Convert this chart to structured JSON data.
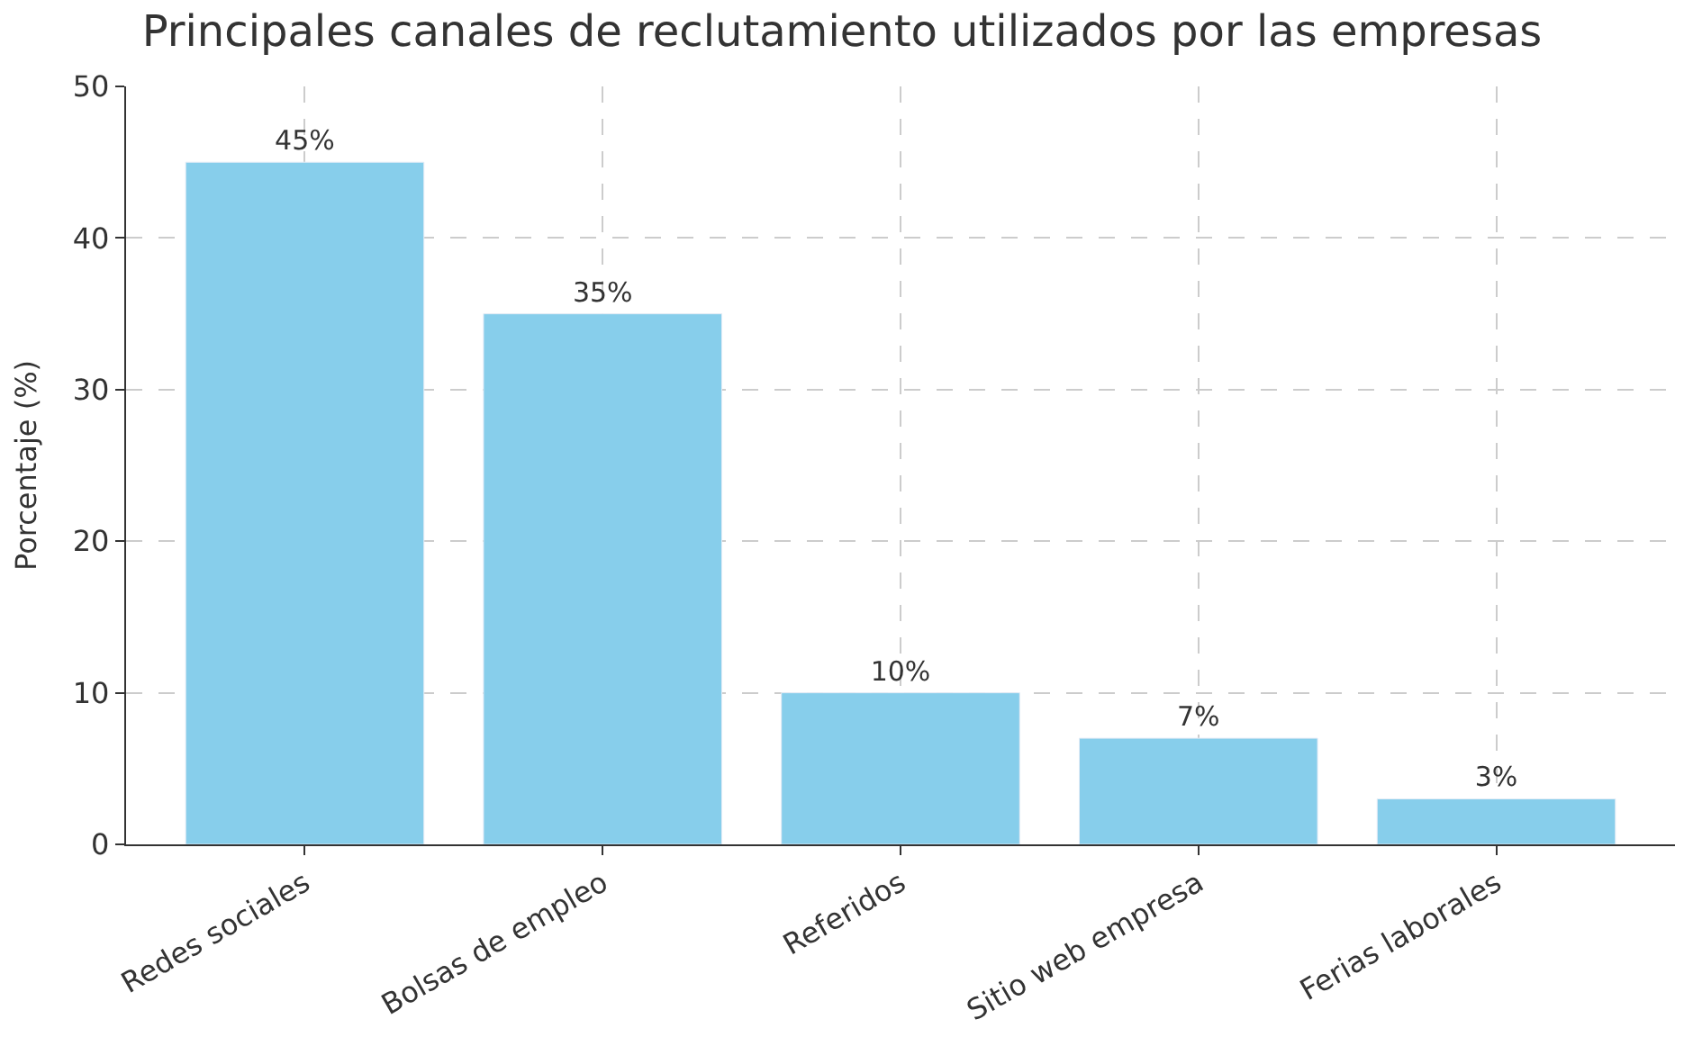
{
  "chart_data": {
    "type": "bar",
    "title": "Principales canales de reclutamiento utilizados por las empresas",
    "ylabel": "Porcentaje (%)",
    "categories": [
      "Redes sociales",
      "Bolsas de empleo",
      "Referidos",
      "Sitio web empresa",
      "Ferias laborales"
    ],
    "values": [
      45,
      35,
      10,
      7,
      3
    ],
    "value_labels": [
      "45%",
      "35%",
      "10%",
      "7%",
      "3%"
    ],
    "color": "#87ceeb",
    "ylim": [
      0,
      50
    ],
    "yticks": [
      0,
      10,
      20,
      30,
      40,
      50
    ],
    "grid": true
  }
}
